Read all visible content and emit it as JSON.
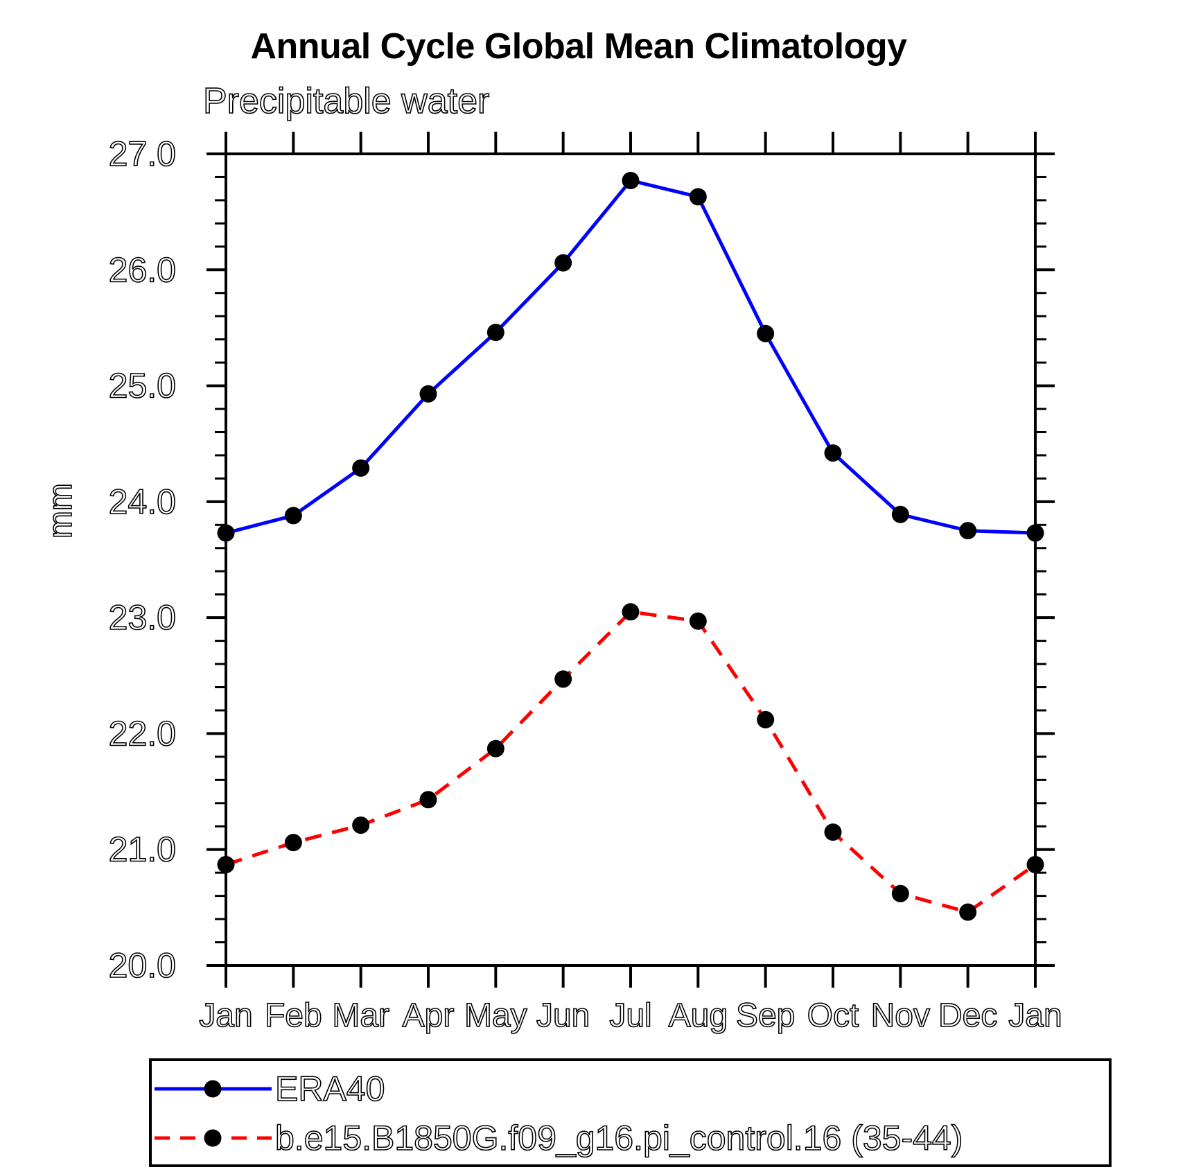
{
  "title": "Annual Cycle Global Mean Climatology",
  "subtitle": "Precipitable water",
  "ylabel": "mm",
  "colors": {
    "background": "#ffffff",
    "axis": "#000000",
    "marker": "#000000",
    "era40_line": "#0000ff",
    "model_line": "#ff0000"
  },
  "chart_data": {
    "type": "line",
    "x_categories": [
      "Jan",
      "Feb",
      "Mar",
      "Apr",
      "May",
      "Jun",
      "Jul",
      "Aug",
      "Sep",
      "Oct",
      "Nov",
      "Dec",
      "Jan"
    ],
    "xlabel": "",
    "ylabel": "mm",
    "ylim": [
      20.0,
      27.0
    ],
    "ytick_major_interval": 1.0,
    "ytick_minor_interval": 0.2,
    "ytick_labels": [
      "20.0",
      "21.0",
      "22.0",
      "23.0",
      "24.0",
      "25.0",
      "26.0",
      "27.0"
    ],
    "grid": false,
    "legend_position": "below-axis-boxed",
    "series": [
      {
        "name": "ERA40",
        "color": "#0000ff",
        "line_style": "solid",
        "marker": "circle",
        "marker_color": "#000000",
        "values": [
          23.73,
          23.88,
          24.29,
          24.93,
          25.46,
          26.06,
          26.77,
          26.63,
          25.45,
          24.42,
          23.89,
          23.75,
          23.73
        ]
      },
      {
        "name": "b.e15.B1850G.f09_g16.pi_control.16 (35-44)",
        "color": "#ff0000",
        "line_style": "dashed",
        "marker": "circle",
        "marker_color": "#000000",
        "values": [
          20.87,
          21.06,
          21.21,
          21.43,
          21.87,
          22.47,
          23.05,
          22.97,
          22.12,
          21.15,
          20.62,
          20.46,
          20.87
        ]
      }
    ]
  }
}
